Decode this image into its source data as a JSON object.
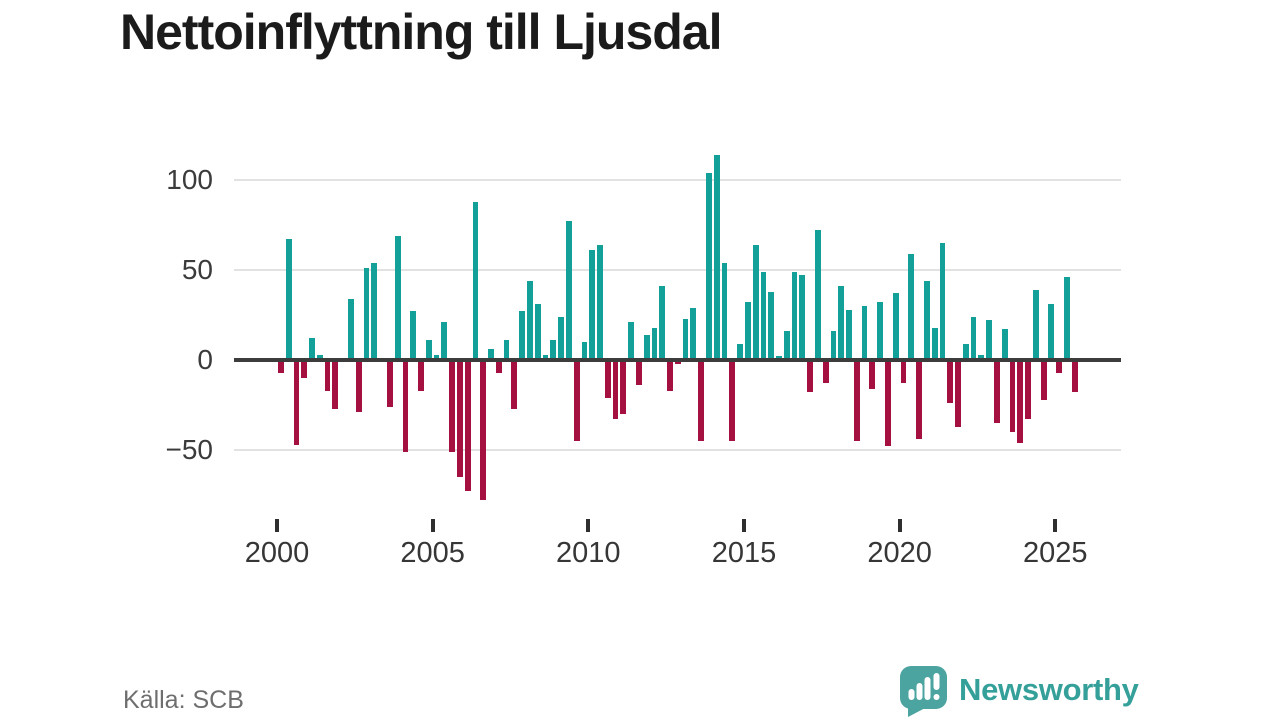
{
  "title": "Nettoinflyttning till Ljusdal",
  "source": "Källa: SCB",
  "branding": {
    "name": "Newsworthy",
    "icon": "newsworthy-speech-bubble-bar-chart-icon"
  },
  "colors": {
    "positive": "#13a099",
    "negative": "#a4103f",
    "axis": "#3c3c3c",
    "gridline": "#e2e2e2",
    "title_text": "#1b1b1b",
    "source_text": "#6e6e6e",
    "brand_teal": "#35a09a",
    "brand_icon": "#4ba4a0"
  },
  "chart_data": {
    "type": "bar",
    "title": "Nettoinflyttning till Ljusdal",
    "xlabel": "",
    "ylabel": "",
    "frequency": "quarterly",
    "grid": true,
    "ylim": [
      -83,
      122
    ],
    "y_ticks": [
      {
        "value": 100,
        "label": "100"
      },
      {
        "value": 50,
        "label": "50"
      },
      {
        "value": 0,
        "label": "0"
      },
      {
        "value": -50,
        "label": "−50"
      }
    ],
    "x_ticks": [
      {
        "year": 2000,
        "label": "2000"
      },
      {
        "year": 2005,
        "label": "2005"
      },
      {
        "year": 2010,
        "label": "2010"
      },
      {
        "year": 2015,
        "label": "2015"
      },
      {
        "year": 2020,
        "label": "2020"
      },
      {
        "year": 2025,
        "label": "2025"
      }
    ],
    "categories": [
      "2000-Q1",
      "2000-Q2",
      "2000-Q3",
      "2000-Q4",
      "2001-Q1",
      "2001-Q2",
      "2001-Q3",
      "2001-Q4",
      "2002-Q1",
      "2002-Q2",
      "2002-Q3",
      "2002-Q4",
      "2003-Q1",
      "2003-Q2",
      "2003-Q3",
      "2003-Q4",
      "2004-Q1",
      "2004-Q2",
      "2004-Q3",
      "2004-Q4",
      "2005-Q1",
      "2005-Q2",
      "2005-Q3",
      "2005-Q4",
      "2006-Q1",
      "2006-Q2",
      "2006-Q3",
      "2006-Q4",
      "2007-Q1",
      "2007-Q2",
      "2007-Q3",
      "2007-Q4",
      "2008-Q1",
      "2008-Q2",
      "2008-Q3",
      "2008-Q4",
      "2009-Q1",
      "2009-Q2",
      "2009-Q3",
      "2009-Q4",
      "2010-Q1",
      "2010-Q2",
      "2010-Q3",
      "2010-Q4",
      "2011-Q1",
      "2011-Q2",
      "2011-Q3",
      "2011-Q4",
      "2012-Q1",
      "2012-Q2",
      "2012-Q3",
      "2012-Q4",
      "2013-Q1",
      "2013-Q2",
      "2013-Q3",
      "2013-Q4",
      "2014-Q1",
      "2014-Q2",
      "2014-Q3",
      "2014-Q4",
      "2015-Q1",
      "2015-Q2",
      "2015-Q3",
      "2015-Q4",
      "2016-Q1",
      "2016-Q2",
      "2016-Q3",
      "2016-Q4",
      "2017-Q1",
      "2017-Q2",
      "2017-Q3",
      "2017-Q4",
      "2018-Q1",
      "2018-Q2",
      "2018-Q3",
      "2018-Q4",
      "2019-Q1",
      "2019-Q2",
      "2019-Q3",
      "2019-Q4",
      "2020-Q1",
      "2020-Q2",
      "2020-Q3",
      "2020-Q4",
      "2021-Q1",
      "2021-Q2",
      "2021-Q3",
      "2021-Q4",
      "2022-Q1",
      "2022-Q2",
      "2022-Q3",
      "2022-Q4",
      "2023-Q1",
      "2023-Q2",
      "2023-Q3",
      "2023-Q4",
      "2024-Q1",
      "2024-Q2",
      "2024-Q3",
      "2024-Q4",
      "2025-Q1",
      "2025-Q2",
      "2025-Q3"
    ],
    "values": [
      -7,
      67,
      -47,
      -10,
      12,
      3,
      -17,
      -27,
      0,
      34,
      -29,
      51,
      54,
      0,
      -26,
      69,
      -51,
      27,
      -17,
      11,
      3,
      21,
      -51,
      -65,
      -73,
      88,
      -78,
      6,
      -7,
      11,
      -27,
      27,
      44,
      31,
      3,
      11,
      24,
      77,
      -45,
      10,
      61,
      64,
      -21,
      -33,
      -30,
      21,
      -14,
      14,
      18,
      41,
      -17,
      -2,
      23,
      29,
      -45,
      104,
      114,
      54,
      -45,
      9,
      32,
      64,
      49,
      38,
      2,
      16,
      49,
      47,
      -18,
      72,
      -13,
      16,
      41,
      28,
      -45,
      30,
      -16,
      32,
      -48,
      37,
      -13,
      59,
      -44,
      44,
      18,
      65,
      -24,
      -37,
      9,
      24,
      3,
      22,
      -35,
      17,
      -40,
      -46,
      -33,
      39,
      -22,
      31,
      -7,
      46,
      -18
    ]
  }
}
